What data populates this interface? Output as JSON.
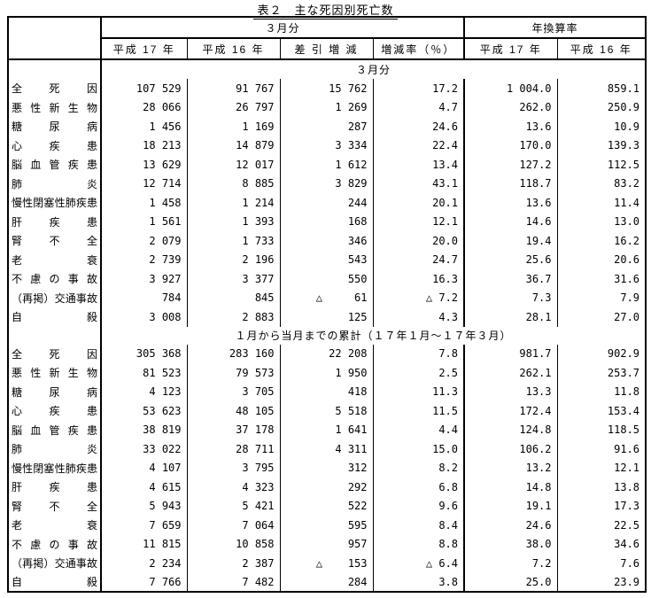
{
  "title": "表２　主な死因別死亡数",
  "table": {
    "col_groups": [
      {
        "label": "３月分",
        "span": 4
      },
      {
        "label": "年換算率",
        "span": 2
      }
    ],
    "columns": [
      "平成 17 年",
      "平成 16 年",
      "差 引 増 減",
      "増減率（％）",
      "平成 17 年",
      "平成 16 年"
    ],
    "sections": [
      {
        "heading": "３月分",
        "rows": [
          {
            "cause": "全死因",
            "cells": [
              "107 529",
              "91 767",
              "15 762",
              "17.2",
              "1 004.0",
              "859.1"
            ]
          },
          {
            "cause": "悪性新生物",
            "cells": [
              "28 066",
              "26 797",
              "1 269",
              "4.7",
              "262.0",
              "250.9"
            ]
          },
          {
            "cause": "糖尿病",
            "cells": [
              "1 456",
              "1 169",
              "287",
              "24.6",
              "13.6",
              "10.9"
            ]
          },
          {
            "cause": "心疾患",
            "cells": [
              "18 213",
              "14 879",
              "3 334",
              "22.4",
              "170.0",
              "139.3"
            ]
          },
          {
            "cause": "脳血管疾患",
            "cells": [
              "13 629",
              "12 017",
              "1 612",
              "13.4",
              "127.2",
              "112.5"
            ]
          },
          {
            "cause": "肺炎",
            "cells": [
              "12 714",
              "8 885",
              "3 829",
              "43.1",
              "118.7",
              "83.2"
            ]
          },
          {
            "cause": "慢性閉塞性肺疾患",
            "cells": [
              "1 458",
              "1 214",
              "244",
              "20.1",
              "13.6",
              "11.4"
            ]
          },
          {
            "cause": "肝疾患",
            "cells": [
              "1 561",
              "1 393",
              "168",
              "12.1",
              "14.6",
              "13.0"
            ]
          },
          {
            "cause": "腎不全",
            "cells": [
              "2 079",
              "1 733",
              "346",
              "20.0",
              "19.4",
              "16.2"
            ]
          },
          {
            "cause": "老衰",
            "cells": [
              "2 739",
              "2 196",
              "543",
              "24.7",
              "25.6",
              "20.6"
            ]
          },
          {
            "cause": "不慮の事故",
            "cells": [
              "3 927",
              "3 377",
              "550",
              "16.3",
              "36.7",
              "31.6"
            ]
          },
          {
            "cause": "（再掲）交通事故",
            "cells": [
              "784",
              "845",
              "△     61",
              "△ 7.2",
              "7.3",
              "7.9"
            ]
          },
          {
            "cause": "自殺",
            "cells": [
              "3 008",
              "2 883",
              "125",
              "4.3",
              "28.1",
              "27.0"
            ]
          }
        ]
      },
      {
        "heading": "１月から当月までの累計（１７年１月～１７年３月）",
        "rows": [
          {
            "cause": "全死因",
            "cells": [
              "305 368",
              "283 160",
              "22 208",
              "7.8",
              "981.7",
              "902.9"
            ]
          },
          {
            "cause": "悪性新生物",
            "cells": [
              "81 523",
              "79 573",
              "1 950",
              "2.5",
              "262.1",
              "253.7"
            ]
          },
          {
            "cause": "糖尿病",
            "cells": [
              "4 123",
              "3 705",
              "418",
              "11.3",
              "13.3",
              "11.8"
            ]
          },
          {
            "cause": "心疾患",
            "cells": [
              "53 623",
              "48 105",
              "5 518",
              "11.5",
              "172.4",
              "153.4"
            ]
          },
          {
            "cause": "脳血管疾患",
            "cells": [
              "38 819",
              "37 178",
              "1 641",
              "4.4",
              "124.8",
              "118.5"
            ]
          },
          {
            "cause": "肺炎",
            "cells": [
              "33 022",
              "28 711",
              "4 311",
              "15.0",
              "106.2",
              "91.6"
            ]
          },
          {
            "cause": "慢性閉塞性肺疾患",
            "cells": [
              "4 107",
              "3 795",
              "312",
              "8.2",
              "13.2",
              "12.1"
            ]
          },
          {
            "cause": "肝疾患",
            "cells": [
              "4 615",
              "4 323",
              "292",
              "6.8",
              "14.8",
              "13.8"
            ]
          },
          {
            "cause": "腎不全",
            "cells": [
              "5 943",
              "5 421",
              "522",
              "9.6",
              "19.1",
              "17.3"
            ]
          },
          {
            "cause": "老衰",
            "cells": [
              "7 659",
              "7 064",
              "595",
              "8.4",
              "24.6",
              "22.5"
            ]
          },
          {
            "cause": "不慮の事故",
            "cells": [
              "11 815",
              "10 858",
              "957",
              "8.8",
              "38.0",
              "34.6"
            ]
          },
          {
            "cause": "（再掲）交通事故",
            "cells": [
              "2 234",
              "2 387",
              "△    153",
              "△ 6.4",
              "7.2",
              "7.6"
            ]
          },
          {
            "cause": "自殺",
            "cells": [
              "7 766",
              "7 482",
              "284",
              "3.8",
              "25.0",
              "23.9"
            ]
          }
        ]
      }
    ]
  }
}
